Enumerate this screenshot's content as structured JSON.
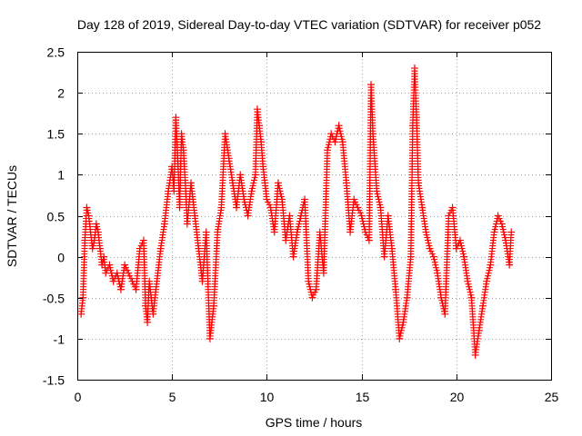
{
  "chart_data": {
    "type": "scatter",
    "title": "Day 128 of 2019, Sidereal Day-to-day VTEC variation (SDTVAR) for receiver p052",
    "xlabel": "GPS time / hours",
    "ylabel": "SDTVAR / TECUs",
    "xlim": [
      0,
      25
    ],
    "ylim": [
      -1.5,
      2.5
    ],
    "xticks": [
      0,
      5,
      10,
      15,
      20,
      25
    ],
    "xtick_labels": [
      "0",
      "5",
      "10",
      "15",
      "20",
      "25"
    ],
    "yticks": [
      -1.5,
      -1,
      -0.5,
      0,
      0.5,
      1,
      1.5,
      2,
      2.5
    ],
    "ytick_labels": [
      "-1.5",
      "-1",
      "-0.5",
      "0",
      "0.5",
      "1",
      "1.5",
      "2",
      "2.5"
    ],
    "grid": true,
    "marker": "+",
    "series": [
      {
        "name": "SDTVAR",
        "color": "#ff0000",
        "x": [
          0.2,
          0.3,
          0.4,
          0.5,
          0.6,
          0.7,
          0.8,
          0.9,
          1.0,
          1.1,
          1.2,
          1.3,
          1.4,
          1.5,
          1.7,
          1.9,
          2.1,
          2.3,
          2.5,
          2.7,
          2.9,
          3.1,
          3.3,
          3.5,
          3.6,
          3.7,
          3.8,
          3.9,
          4.0,
          4.4,
          4.6,
          4.8,
          5.0,
          5.1,
          5.2,
          5.3,
          5.4,
          5.5,
          5.6,
          5.7,
          5.8,
          6.0,
          6.2,
          6.4,
          6.6,
          6.8,
          7.0,
          7.2,
          7.4,
          7.6,
          7.8,
          8.0,
          8.2,
          8.4,
          8.6,
          8.8,
          9.0,
          9.2,
          9.4,
          9.5,
          9.6,
          9.7,
          9.8,
          9.9,
          10.0,
          10.2,
          10.4,
          10.6,
          10.8,
          11.0,
          11.2,
          11.4,
          11.6,
          11.8,
          12.0,
          12.2,
          12.4,
          12.6,
          12.8,
          13.0,
          13.2,
          13.4,
          13.6,
          13.8,
          14.0,
          14.2,
          14.4,
          14.6,
          14.8,
          15.0,
          15.2,
          15.4,
          15.5,
          15.6,
          15.8,
          16.0,
          16.2,
          16.4,
          16.6,
          16.8,
          17.0,
          17.2,
          17.4,
          17.6,
          17.7,
          17.8,
          17.9,
          18.0,
          18.2,
          18.4,
          18.6,
          18.8,
          19.0,
          19.2,
          19.4,
          19.6,
          19.8,
          20.0,
          20.2,
          20.4,
          20.6,
          20.8,
          21.0,
          21.2,
          21.4,
          21.6,
          21.8,
          22.0,
          22.2,
          22.4,
          22.6,
          22.8,
          22.9
        ],
        "y": [
          -0.7,
          -0.5,
          0.2,
          0.6,
          0.5,
          0.3,
          0.1,
          0.2,
          0.4,
          0.3,
          0.1,
          -0.1,
          0.0,
          -0.2,
          -0.1,
          -0.3,
          -0.2,
          -0.4,
          -0.1,
          -0.2,
          -0.3,
          -0.4,
          0.1,
          0.2,
          -0.6,
          -0.8,
          -0.3,
          -0.5,
          -0.7,
          0.1,
          0.4,
          0.8,
          1.1,
          0.8,
          1.7,
          1.2,
          0.6,
          1.5,
          1.3,
          0.9,
          0.4,
          0.9,
          0.5,
          0.1,
          -0.3,
          0.3,
          -1.0,
          -0.6,
          0.3,
          0.6,
          1.5,
          1.2,
          0.9,
          0.6,
          1.0,
          0.7,
          0.5,
          0.8,
          1.0,
          1.8,
          1.6,
          1.4,
          1.1,
          0.9,
          0.7,
          0.6,
          0.3,
          0.9,
          0.7,
          0.2,
          0.5,
          0.0,
          0.3,
          0.5,
          0.7,
          -0.3,
          -0.5,
          -0.4,
          0.3,
          -0.2,
          1.3,
          1.5,
          1.4,
          1.6,
          1.4,
          0.9,
          0.3,
          0.7,
          0.6,
          0.5,
          0.3,
          0.2,
          2.1,
          1.5,
          0.8,
          0.6,
          0.0,
          0.5,
          0.1,
          -0.4,
          -1.0,
          -0.8,
          -0.5,
          0.0,
          1.6,
          2.3,
          1.7,
          0.9,
          0.6,
          0.3,
          0.1,
          0.0,
          -0.2,
          -0.5,
          -0.7,
          0.5,
          0.6,
          0.1,
          0.2,
          0.0,
          -0.3,
          -0.5,
          -1.2,
          -0.9,
          -0.6,
          -0.3,
          -0.1,
          0.3,
          0.5,
          0.4,
          0.2,
          -0.1,
          0.3
        ]
      }
    ]
  }
}
